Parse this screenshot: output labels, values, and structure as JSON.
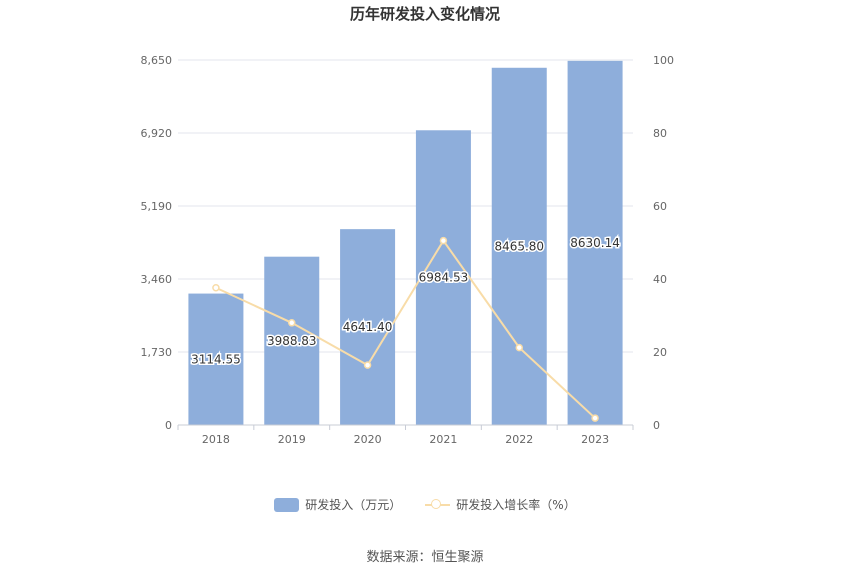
{
  "chart_data": {
    "type": "bar",
    "title": "历年研发投入变化情况",
    "categories": [
      "2018",
      "2019",
      "2020",
      "2021",
      "2022",
      "2023"
    ],
    "series": [
      {
        "name": "研发投入（万元）",
        "type": "bar",
        "axis": "left",
        "color": "#8eaedb",
        "values": [
          3114.55,
          3988.83,
          4641.4,
          6984.53,
          8465.8,
          8630.14
        ],
        "labels": [
          "3114.55",
          "3988.83",
          "4641.40",
          "6984.53",
          "8465.80",
          "8630.14"
        ]
      },
      {
        "name": "研发投入增长率（%）",
        "type": "line",
        "axis": "right",
        "color": "#f8dca8",
        "values": [
          37.6,
          28.0,
          16.4,
          50.5,
          21.2,
          1.9
        ]
      }
    ],
    "y_left": {
      "ticks": [
        "0",
        "1,730",
        "3,460",
        "5,190",
        "6,920",
        "8,650"
      ],
      "min": 0,
      "max": 8650
    },
    "y_right": {
      "ticks": [
        "0",
        "20",
        "40",
        "60",
        "80",
        "100"
      ],
      "min": 0,
      "max": 100
    },
    "grid": true,
    "legend_position": "bottom"
  },
  "legend": {
    "bar_label": "研发投入（万元）",
    "line_label": "研发投入增长率（%）"
  },
  "source": "数据来源：恒生聚源"
}
